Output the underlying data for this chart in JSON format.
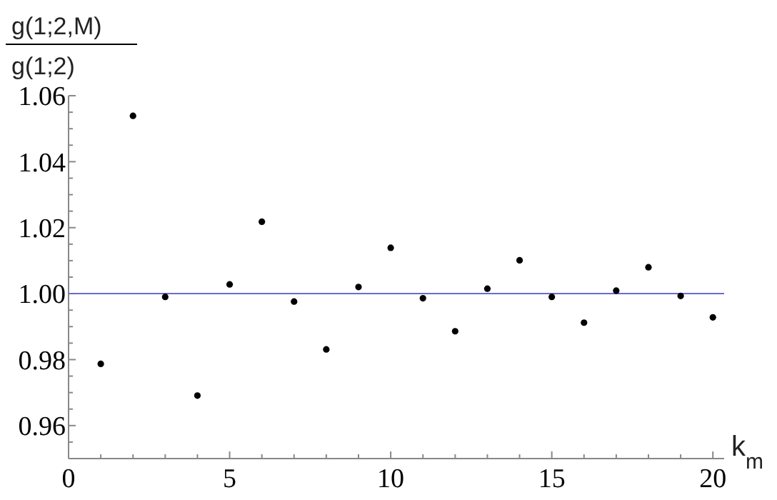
{
  "chart_data": {
    "type": "scatter",
    "xlabel": "k$_{m}$",
    "ylabel": "g(1;2,M)",
    "annotations": [
      "g(1;2)"
    ],
    "x": [
      1,
      2,
      3,
      4,
      5,
      6,
      7,
      8,
      9,
      10,
      11,
      12,
      13,
      14,
      15,
      16,
      17,
      18,
      19,
      20
    ],
    "series": [
      {
        "color": "#000000",
        "values": [
          0.9787,
          1.0539,
          0.999,
          0.9691,
          1.0028,
          1.0218,
          0.9976,
          0.9831,
          1.002,
          1.0139,
          0.9986,
          0.9886,
          1.0015,
          1.0101,
          0.999,
          0.9912,
          1.0009,
          1.008,
          0.9993,
          0.9928
        ]
      }
    ],
    "xlim": [
      0,
      20.35
    ],
    "ylim": [
      0.95,
      1.06
    ],
    "xticks": [
      0,
      {
        "value": 1,
        "label": null
      },
      {
        "value": 2,
        "label": null
      },
      {
        "value": 3,
        "label": null
      },
      {
        "value": 4,
        "label": null
      },
      5,
      {
        "value": 6,
        "label": null
      },
      {
        "value": 7,
        "label": null
      },
      {
        "value": 8,
        "label": null
      },
      {
        "value": 9,
        "label": null
      },
      10,
      {
        "value": 11,
        "label": null
      },
      {
        "value": 12,
        "label": null
      },
      {
        "value": 13,
        "label": null
      },
      {
        "value": 14,
        "label": null
      },
      15,
      {
        "value": 16,
        "label": null
      },
      {
        "value": 17,
        "label": null
      },
      {
        "value": 18,
        "label": null
      },
      {
        "value": 19,
        "label": null
      },
      20
    ],
    "yticks": [
      {
        "value": 0.955,
        "label": null
      },
      {
        "value": 0.96,
        "label": "0.96"
      },
      {
        "value": 0.965,
        "label": null
      },
      {
        "value": 0.97,
        "label": null
      },
      {
        "value": 0.975,
        "label": null
      },
      {
        "value": 0.98,
        "label": "0.98"
      },
      {
        "value": 0.985,
        "label": null
      },
      {
        "value": 0.99,
        "label": null
      },
      {
        "value": 0.995,
        "label": null
      },
      {
        "value": 1.0,
        "label": "1.00"
      },
      {
        "value": 1.005,
        "label": null
      },
      {
        "value": 1.01,
        "label": null
      },
      {
        "value": 1.015,
        "label": null
      },
      {
        "value": 1.02,
        "label": "1.02"
      },
      {
        "value": 1.025,
        "label": null
      },
      {
        "value": 1.03,
        "label": null
      },
      {
        "value": 1.035,
        "label": null
      },
      {
        "value": 1.04,
        "label": "1.04"
      },
      {
        "value": 1.045,
        "label": null
      },
      {
        "value": 1.05,
        "label": null
      },
      {
        "value": 1.055,
        "label": null
      },
      {
        "value": 1.06,
        "label": "1.06"
      }
    ],
    "ref_lines": [
      {
        "axis": "y",
        "value": 1.0,
        "color": "#6b6bd8"
      }
    ],
    "marker": "circle",
    "grid": false
  }
}
